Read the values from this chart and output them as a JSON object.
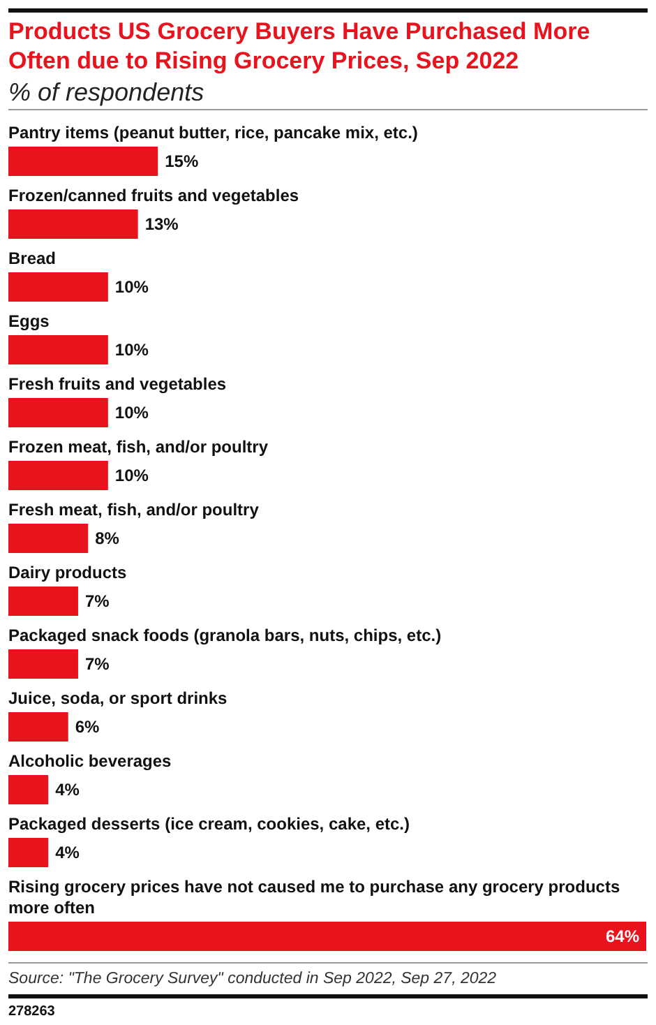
{
  "chart_data": {
    "type": "bar",
    "orientation": "horizontal",
    "title": "Products US Grocery Buyers Have Purchased More Often due to Rising Grocery Prices, Sep 2022",
    "subtitle": "% of respondents",
    "categories": [
      "Pantry items (peanut butter, rice, pancake mix, etc.)",
      "Frozen/canned fruits and vegetables",
      "Bread",
      "Eggs",
      "Fresh fruits and vegetables",
      "Frozen meat, fish, and/or poultry",
      "Fresh meat, fish, and/or poultry",
      "Dairy products",
      "Packaged snack foods (granola bars, nuts, chips, etc.)",
      "Juice, soda, or sport drinks",
      "Alcoholic beverages",
      "Packaged desserts (ice cream, cookies, cake, etc.)",
      "Rising grocery prices have not caused me to purchase any grocery products more often"
    ],
    "values": [
      15,
      13,
      10,
      10,
      10,
      10,
      8,
      7,
      7,
      6,
      4,
      4,
      64
    ],
    "value_labels": [
      "15%",
      "13%",
      "10%",
      "10%",
      "10%",
      "10%",
      "8%",
      "7%",
      "7%",
      "6%",
      "4%",
      "4%",
      "64%"
    ],
    "color": "#e8131d",
    "annotations": [
      "Source: \"The Grocery Survey\" conducted in Sep 2022, Sep 27, 2022",
      "278263"
    ]
  }
}
